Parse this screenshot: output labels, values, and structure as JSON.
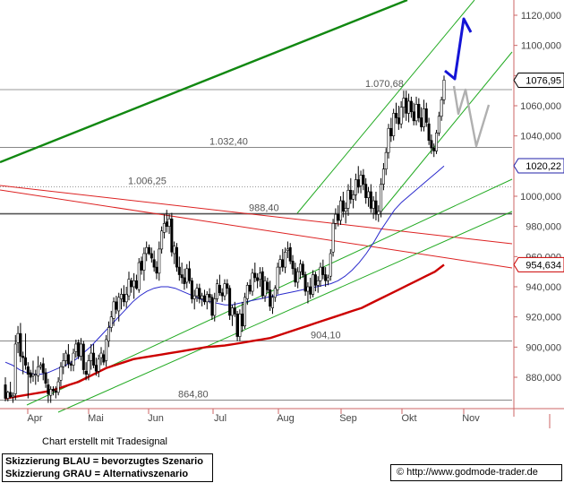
{
  "chart_data": {
    "type": "candlestick",
    "x_axis": {
      "labels": [
        "Apr",
        "Mai",
        "Jun",
        "Jul",
        "Aug",
        "Sep",
        "Okt",
        "Nov"
      ]
    },
    "y_axis": {
      "range": [
        860000,
        1125000
      ],
      "ticks": [
        880000,
        900000,
        920000,
        940000,
        960000,
        980000,
        1000000,
        1020000,
        1040000,
        1060000,
        1080000,
        1100000,
        1120000
      ],
      "tick_labels": [
        "880,000",
        "900,000",
        "920,000",
        "940,000",
        "960,000",
        "980,000",
        "1000,000",
        "1020,000",
        "1040,000",
        "1060,000",
        "1080,000",
        "1100,000",
        "1120,000"
      ]
    },
    "horizontal_levels": [
      {
        "value": 1070680,
        "label": "1.070,68",
        "color": "#777777"
      },
      {
        "value": 1032400,
        "label": "1.032,40",
        "color": "#777777"
      },
      {
        "value": 1006250,
        "label": "1.006,25",
        "color": "#777777",
        "dotted": true
      },
      {
        "value": 988400,
        "label": "988,40",
        "color": "#555555"
      },
      {
        "value": 904100,
        "label": "904,10",
        "color": "#777777"
      },
      {
        "value": 864800,
        "label": "864,80",
        "color": "#777777"
      }
    ],
    "price_markers": [
      {
        "value": 1076950,
        "label": "1076,95",
        "color": "#000000"
      },
      {
        "value": 1020220,
        "label": "1020,22",
        "color": "#2222aa"
      },
      {
        "value": 954634,
        "label": "954,634",
        "color": "#cc0000"
      }
    ],
    "ohlc": [
      [
        875000,
        880000,
        864000,
        866000
      ],
      [
        866000,
        871000,
        864000,
        870000
      ],
      [
        870000,
        877000,
        866000,
        867000
      ],
      [
        867000,
        870000,
        863000,
        868000
      ],
      [
        869000,
        908000,
        865000,
        902000
      ],
      [
        903000,
        914000,
        896000,
        909000
      ],
      [
        909000,
        916000,
        890000,
        894000
      ],
      [
        894000,
        897000,
        882000,
        893000
      ],
      [
        893000,
        909000,
        885000,
        888000
      ],
      [
        887000,
        890000,
        866000,
        882000
      ],
      [
        883000,
        885000,
        876000,
        880000
      ],
      [
        881000,
        891000,
        877000,
        882000
      ],
      [
        882000,
        885000,
        875000,
        882000
      ],
      [
        881000,
        894000,
        877000,
        887000
      ],
      [
        887000,
        890000,
        885000,
        888000
      ],
      [
        889000,
        893000,
        878000,
        883000
      ],
      [
        883000,
        886000,
        873000,
        876000
      ],
      [
        875000,
        879000,
        863000,
        869000
      ],
      [
        868000,
        874000,
        863000,
        872000
      ],
      [
        872000,
        874000,
        868000,
        871000
      ],
      [
        871000,
        874000,
        866000,
        870000
      ],
      [
        870000,
        880000,
        868000,
        877000
      ],
      [
        878000,
        890000,
        874000,
        887000
      ],
      [
        887000,
        896000,
        882000,
        891000
      ],
      [
        891000,
        898000,
        887000,
        896000
      ],
      [
        895000,
        902000,
        886000,
        889000
      ],
      [
        889000,
        891000,
        884000,
        888000
      ],
      [
        888000,
        899000,
        884000,
        896000
      ],
      [
        897000,
        905000,
        893000,
        902000
      ],
      [
        903000,
        905000,
        892000,
        894000
      ],
      [
        894000,
        906000,
        891000,
        902000
      ],
      [
        902000,
        904000,
        882000,
        885000
      ],
      [
        884000,
        890000,
        878000,
        882000
      ],
      [
        882000,
        895000,
        878000,
        891000
      ],
      [
        891000,
        902000,
        885000,
        896000
      ],
      [
        896000,
        902000,
        886000,
        888000
      ],
      [
        888000,
        893000,
        881000,
        884000
      ],
      [
        884000,
        895000,
        880000,
        892000
      ],
      [
        893000,
        900000,
        888000,
        896000
      ],
      [
        895000,
        898000,
        888000,
        890000
      ],
      [
        891000,
        908000,
        887000,
        905000
      ],
      [
        904000,
        917000,
        900000,
        913000
      ],
      [
        913000,
        924000,
        910000,
        920000
      ],
      [
        919000,
        933000,
        914000,
        930000
      ],
      [
        930000,
        934000,
        922000,
        925000
      ],
      [
        924000,
        936000,
        917000,
        933000
      ],
      [
        932000,
        939000,
        925000,
        935000
      ],
      [
        935000,
        941000,
        927000,
        930000
      ],
      [
        930000,
        940000,
        926000,
        935000
      ],
      [
        934000,
        950000,
        931000,
        945000
      ],
      [
        944000,
        946000,
        936000,
        940000
      ],
      [
        940000,
        949000,
        932000,
        944000
      ],
      [
        944000,
        948000,
        938000,
        939000
      ],
      [
        938000,
        959000,
        936000,
        956000
      ],
      [
        957000,
        960000,
        948000,
        951000
      ],
      [
        951000,
        966000,
        944000,
        962000
      ],
      [
        962000,
        970000,
        957000,
        966000
      ],
      [
        966000,
        968000,
        961000,
        962000
      ],
      [
        962000,
        966000,
        956000,
        959000
      ],
      [
        958000,
        964000,
        950000,
        953000
      ],
      [
        953000,
        957000,
        945000,
        949000
      ],
      [
        949000,
        970000,
        944000,
        965000
      ],
      [
        965000,
        980000,
        962000,
        977000
      ],
      [
        976000,
        988000,
        972000,
        982000
      ],
      [
        983000,
        991000,
        976000,
        980000
      ],
      [
        980000,
        988000,
        975000,
        985000
      ],
      [
        985000,
        989000,
        960000,
        963000
      ],
      [
        962000,
        970000,
        955000,
        967000
      ],
      [
        966000,
        969000,
        950000,
        953000
      ],
      [
        953000,
        960000,
        944000,
        948000
      ],
      [
        948000,
        956000,
        942000,
        946000
      ],
      [
        946000,
        952000,
        938000,
        942000
      ],
      [
        943000,
        955000,
        939000,
        952000
      ],
      [
        952000,
        957000,
        942000,
        944000
      ],
      [
        944000,
        946000,
        929000,
        932000
      ],
      [
        932000,
        938000,
        925000,
        934000
      ],
      [
        934000,
        942000,
        930000,
        939000
      ],
      [
        939000,
        942000,
        929000,
        932000
      ],
      [
        932000,
        936000,
        927000,
        934000
      ],
      [
        934000,
        938000,
        928000,
        930000
      ],
      [
        930000,
        937000,
        925000,
        935000
      ],
      [
        935000,
        939000,
        929000,
        933000
      ],
      [
        933000,
        935000,
        918000,
        921000
      ],
      [
        921000,
        936000,
        917000,
        932000
      ],
      [
        932000,
        945000,
        930000,
        942000
      ],
      [
        941000,
        948000,
        934000,
        936000
      ],
      [
        936000,
        939000,
        930000,
        934000
      ],
      [
        934000,
        945000,
        931000,
        942000
      ],
      [
        942000,
        945000,
        935000,
        939000
      ],
      [
        939000,
        941000,
        918000,
        921000
      ],
      [
        921000,
        928000,
        914000,
        926000
      ],
      [
        926000,
        930000,
        920000,
        922000
      ],
      [
        922000,
        924000,
        904000,
        907000
      ],
      [
        907000,
        925000,
        904000,
        922000
      ],
      [
        922000,
        930000,
        910000,
        914000
      ],
      [
        914000,
        936000,
        912000,
        933000
      ],
      [
        932000,
        943000,
        928000,
        941000
      ],
      [
        941000,
        945000,
        935000,
        937000
      ],
      [
        937000,
        952000,
        934000,
        949000
      ],
      [
        949000,
        956000,
        943000,
        946000
      ],
      [
        946000,
        949000,
        939000,
        944000
      ],
      [
        945000,
        953000,
        940000,
        949000
      ],
      [
        950000,
        953000,
        932000,
        934000
      ],
      [
        934000,
        947000,
        930000,
        944000
      ],
      [
        943000,
        946000,
        936000,
        938000
      ],
      [
        938000,
        944000,
        924000,
        927000
      ],
      [
        926000,
        935000,
        922000,
        933000
      ],
      [
        933000,
        941000,
        930000,
        939000
      ],
      [
        938000,
        956000,
        935000,
        953000
      ],
      [
        953000,
        961000,
        948000,
        958000
      ],
      [
        958000,
        965000,
        950000,
        953000
      ],
      [
        953000,
        966000,
        949000,
        963000
      ],
      [
        964000,
        970000,
        959000,
        965000
      ],
      [
        966000,
        969000,
        955000,
        957000
      ],
      [
        957000,
        961000,
        948000,
        952000
      ],
      [
        952000,
        956000,
        940000,
        943000
      ],
      [
        943000,
        953000,
        939000,
        950000
      ],
      [
        950000,
        958000,
        945000,
        955000
      ],
      [
        955000,
        957000,
        946000,
        948000
      ],
      [
        948000,
        950000,
        934000,
        937000
      ],
      [
        937000,
        943000,
        929000,
        940000
      ],
      [
        940000,
        946000,
        932000,
        935000
      ],
      [
        935000,
        951000,
        933000,
        948000
      ],
      [
        948000,
        950000,
        937000,
        941000
      ],
      [
        941000,
        947000,
        936000,
        944000
      ],
      [
        944000,
        956000,
        940000,
        953000
      ],
      [
        953000,
        958000,
        945000,
        948000
      ],
      [
        948000,
        953000,
        940000,
        944000
      ],
      [
        944000,
        948000,
        941000,
        946000
      ],
      [
        947000,
        965000,
        944000,
        962000
      ],
      [
        963000,
        985000,
        960000,
        982000
      ],
      [
        982000,
        992000,
        978000,
        988000
      ],
      [
        988000,
        994000,
        980000,
        984000
      ],
      [
        984000,
        1000000,
        981000,
        997000
      ],
      [
        997000,
        1003000,
        986000,
        990000
      ],
      [
        990000,
        996000,
        982000,
        992000
      ],
      [
        992000,
        1008000,
        987000,
        1004000
      ],
      [
        1004000,
        1012000,
        995000,
        998000
      ],
      [
        998000,
        1004000,
        992000,
        1001000
      ],
      [
        1001000,
        1015000,
        997000,
        1011000
      ],
      [
        1011000,
        1020000,
        1002000,
        1006000
      ],
      [
        1007000,
        1017000,
        1002000,
        1014000
      ],
      [
        1014000,
        1018000,
        1004000,
        1008000
      ],
      [
        1008000,
        1012000,
        995000,
        999000
      ],
      [
        999000,
        1006000,
        993000,
        1003000
      ],
      [
        1003000,
        1008000,
        989000,
        992000
      ],
      [
        992000,
        1000000,
        985000,
        997000
      ],
      [
        997000,
        1003000,
        984000,
        988000
      ],
      [
        988000,
        994000,
        983000,
        990000
      ],
      [
        990000,
        1012000,
        986000,
        1008000
      ],
      [
        1008000,
        1022000,
        1004000,
        1018000
      ],
      [
        1018000,
        1032000,
        1014000,
        1029000
      ],
      [
        1029000,
        1048000,
        1025000,
        1045000
      ],
      [
        1045000,
        1052000,
        1036000,
        1040000
      ],
      [
        1040000,
        1058000,
        1037000,
        1055000
      ],
      [
        1055000,
        1062000,
        1048000,
        1052000
      ],
      [
        1052000,
        1060000,
        1044000,
        1048000
      ],
      [
        1048000,
        1063000,
        1045000,
        1059000
      ],
      [
        1059000,
        1070000,
        1052000,
        1065000
      ],
      [
        1065000,
        1070000,
        1050000,
        1055000
      ],
      [
        1055000,
        1068000,
        1049000,
        1063000
      ],
      [
        1063000,
        1066000,
        1052000,
        1056000
      ],
      [
        1056000,
        1062000,
        1047000,
        1050000
      ],
      [
        1050000,
        1066000,
        1047000,
        1061000
      ],
      [
        1061000,
        1065000,
        1049000,
        1052000
      ],
      [
        1052000,
        1059000,
        1043000,
        1046000
      ],
      [
        1046000,
        1064000,
        1043000,
        1058000
      ],
      [
        1058000,
        1062000,
        1046000,
        1049000
      ],
      [
        1048000,
        1052000,
        1034000,
        1037000
      ],
      [
        1037000,
        1041000,
        1028000,
        1032000
      ],
      [
        1032000,
        1035000,
        1026000,
        1030000
      ],
      [
        1030000,
        1044000,
        1028000,
        1042000
      ],
      [
        1042000,
        1056000,
        1040000,
        1053000
      ],
      [
        1053000,
        1066000,
        1050000,
        1064000
      ],
      [
        1064000,
        1080000,
        1061000,
        1077000
      ]
    ],
    "moving_average_blue": [
      890000,
      888000,
      885000,
      883000,
      882000,
      882000,
      883000,
      885000,
      887000,
      889000,
      892000,
      896000,
      900000,
      905000,
      910000,
      915000,
      920000,
      925000,
      930000,
      934000,
      937000,
      939000,
      940000,
      940000,
      939000,
      937000,
      935000,
      933000,
      931000,
      930000,
      929000,
      928000,
      928000,
      929000,
      930000,
      931000,
      932000,
      933000,
      934000,
      935000,
      936000,
      937000,
      938000,
      939000,
      940000,
      941000,
      942000,
      944000,
      947000,
      951000,
      956000,
      962000,
      969000,
      977000,
      984000,
      991000,
      996000,
      1000000,
      1004000,
      1008000,
      1012000,
      1016000,
      1020000
    ],
    "moving_average_red": [
      866000,
      867000,
      868000,
      869000,
      870000,
      871000,
      873000,
      875000,
      877000,
      880000,
      883000,
      886000,
      888000,
      890000,
      892000,
      893000,
      894000,
      895000,
      896000,
      897000,
      898000,
      899000,
      900000,
      900500,
      901000,
      902000,
      903000,
      904000,
      905000,
      906000,
      908000,
      910000,
      912000,
      914000,
      916000,
      918000,
      920000,
      922000,
      924000,
      926000,
      929000,
      932000,
      935000,
      938000,
      941000,
      944000,
      947000,
      950000,
      954634
    ],
    "scenario_blue": {
      "label": "bevorzugtes Szenario"
    },
    "scenario_gray": {
      "label": "Alternativszenario"
    }
  },
  "footer": {
    "credit": "Chart erstellt mit Tradesignal",
    "legend_blue": "Skizzierung BLAU = bevorzugtes Szenario",
    "legend_gray": "Skizzierung GRAU = Alternativszenario",
    "website": "© http://www.godmode-trader.de"
  },
  "colors": {
    "candle": "#000000",
    "ma_blue": "#2a2acc",
    "ma_red": "#cc0000",
    "trend_green_dark": "#118811",
    "channel_green": "#22aa22",
    "resistance_red": "#dd2222",
    "scenario_blue": "#1414d6",
    "scenario_gray": "#b0b0b0",
    "grid_line": "#777777",
    "axis": "#cc6666"
  }
}
